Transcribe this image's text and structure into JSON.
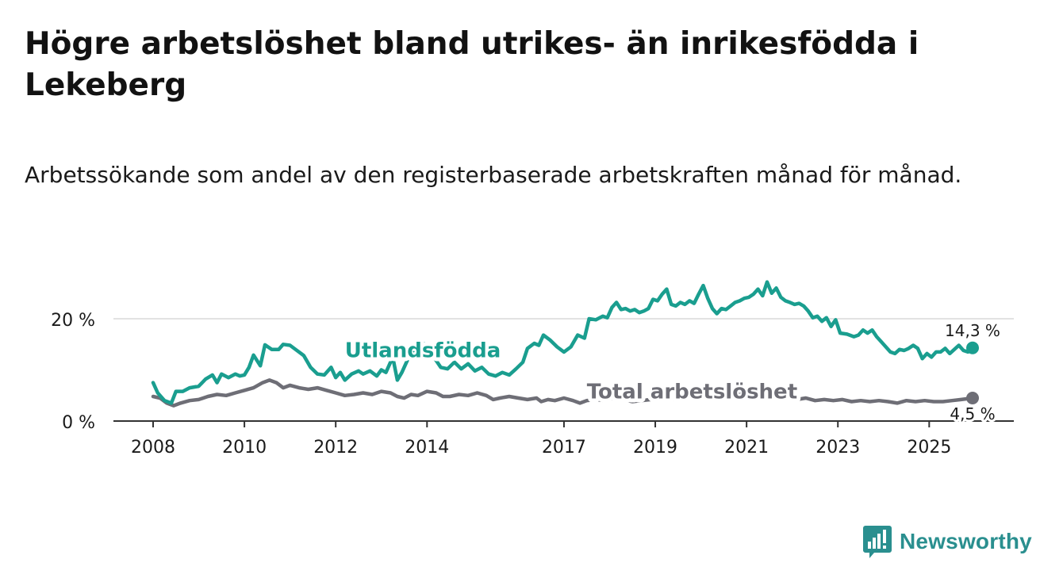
{
  "title": "Högre arbetslöshet bland utrikes- än inrikesfödda i Lekeberg",
  "subtitle": "Arbetssökande som andel av den registerbaserade arbetskraften månad för månad.",
  "brand": {
    "name": "Newsworthy",
    "icon": "newsworthy-logo-icon"
  },
  "colors": {
    "foreign": "#1a9e8f",
    "total": "#6e6e76",
    "grid": "#d9d9d9",
    "axis": "#333333",
    "text": "#1a1a1a"
  },
  "chart_data": {
    "type": "line",
    "title": "Högre arbetslöshet bland utrikes- än inrikesfödda i Lekeberg",
    "xlabel": "",
    "ylabel": "",
    "xlim": [
      2008,
      2026.5
    ],
    "ylim": [
      0,
      25
    ],
    "x_ticks": [
      {
        "value": 2008,
        "label": "2008"
      },
      {
        "value": 2010,
        "label": "2010"
      },
      {
        "value": 2012,
        "label": "2012"
      },
      {
        "value": 2014,
        "label": "2014"
      },
      {
        "value": 2017,
        "label": "2017"
      },
      {
        "value": 2019,
        "label": "2019"
      },
      {
        "value": 2021,
        "label": "2021"
      },
      {
        "value": 2023,
        "label": "2023"
      },
      {
        "value": 2025,
        "label": "2025"
      }
    ],
    "y_ticks": [
      {
        "value": 0,
        "label": "0 %"
      },
      {
        "value": 20,
        "label": "20 %"
      }
    ],
    "series": [
      {
        "name": "Utlandsfödda",
        "label": "Utlandsfödda",
        "color": "#1a9e8f",
        "end_label": "14,3 %",
        "label_pos": [
          2012.2,
          12.5
        ],
        "points": [
          [
            2008.0,
            7.5
          ],
          [
            2008.1,
            5.5
          ],
          [
            2008.25,
            4.0
          ],
          [
            2008.4,
            3.5
          ],
          [
            2008.5,
            5.8
          ],
          [
            2008.65,
            5.8
          ],
          [
            2008.8,
            6.5
          ],
          [
            2009.0,
            6.8
          ],
          [
            2009.15,
            8.2
          ],
          [
            2009.3,
            9.0
          ],
          [
            2009.4,
            7.5
          ],
          [
            2009.5,
            9.2
          ],
          [
            2009.65,
            8.5
          ],
          [
            2009.8,
            9.2
          ],
          [
            2009.9,
            8.8
          ],
          [
            2010.0,
            9.0
          ],
          [
            2010.1,
            10.5
          ],
          [
            2010.2,
            12.9
          ],
          [
            2010.35,
            10.8
          ],
          [
            2010.45,
            14.9
          ],
          [
            2010.6,
            14.0
          ],
          [
            2010.75,
            14.0
          ],
          [
            2010.85,
            15.0
          ],
          [
            2011.0,
            14.8
          ],
          [
            2011.15,
            13.8
          ],
          [
            2011.3,
            12.8
          ],
          [
            2011.45,
            10.5
          ],
          [
            2011.6,
            9.2
          ],
          [
            2011.75,
            9.0
          ],
          [
            2011.9,
            10.5
          ],
          [
            2012.0,
            8.5
          ],
          [
            2012.1,
            9.5
          ],
          [
            2012.2,
            8.0
          ],
          [
            2012.35,
            9.2
          ],
          [
            2012.5,
            9.8
          ],
          [
            2012.6,
            9.2
          ],
          [
            2012.75,
            9.8
          ],
          [
            2012.9,
            8.8
          ],
          [
            2013.0,
            10.0
          ],
          [
            2013.1,
            9.5
          ],
          [
            2013.25,
            12.5
          ],
          [
            2013.35,
            8.0
          ],
          [
            2013.45,
            9.5
          ],
          [
            2013.6,
            12.5
          ],
          [
            2013.75,
            14.5
          ],
          [
            2013.85,
            15.5
          ],
          [
            2014.0,
            14.8
          ],
          [
            2014.15,
            12.5
          ],
          [
            2014.3,
            10.5
          ],
          [
            2014.45,
            10.2
          ],
          [
            2014.6,
            11.5
          ],
          [
            2014.75,
            10.2
          ],
          [
            2014.9,
            11.2
          ],
          [
            2015.05,
            9.8
          ],
          [
            2015.2,
            10.5
          ],
          [
            2015.35,
            9.2
          ],
          [
            2015.5,
            8.8
          ],
          [
            2015.65,
            9.5
          ],
          [
            2015.8,
            9.0
          ],
          [
            2015.95,
            10.2
          ],
          [
            2016.1,
            11.5
          ],
          [
            2016.2,
            14.2
          ],
          [
            2016.35,
            15.2
          ],
          [
            2016.45,
            14.8
          ],
          [
            2016.55,
            16.8
          ],
          [
            2016.7,
            15.8
          ],
          [
            2016.85,
            14.5
          ],
          [
            2017.0,
            13.5
          ],
          [
            2017.15,
            14.5
          ],
          [
            2017.3,
            16.8
          ],
          [
            2017.45,
            16.2
          ],
          [
            2017.55,
            20.0
          ],
          [
            2017.7,
            19.8
          ],
          [
            2017.85,
            20.5
          ],
          [
            2017.95,
            20.2
          ],
          [
            2018.05,
            22.2
          ],
          [
            2018.15,
            23.2
          ],
          [
            2018.25,
            21.8
          ],
          [
            2018.35,
            22.0
          ],
          [
            2018.45,
            21.5
          ],
          [
            2018.55,
            21.8
          ],
          [
            2018.65,
            21.2
          ],
          [
            2018.75,
            21.5
          ],
          [
            2018.85,
            22.0
          ],
          [
            2018.95,
            23.8
          ],
          [
            2019.05,
            23.5
          ],
          [
            2019.15,
            24.8
          ],
          [
            2019.25,
            25.8
          ],
          [
            2019.35,
            22.8
          ],
          [
            2019.45,
            22.5
          ],
          [
            2019.55,
            23.2
          ],
          [
            2019.65,
            22.8
          ],
          [
            2019.75,
            23.5
          ],
          [
            2019.85,
            23.0
          ],
          [
            2019.95,
            24.8
          ],
          [
            2020.05,
            26.5
          ],
          [
            2020.15,
            24.0
          ],
          [
            2020.25,
            22.0
          ],
          [
            2020.35,
            21.0
          ],
          [
            2020.45,
            22.0
          ],
          [
            2020.55,
            21.8
          ],
          [
            2020.65,
            22.5
          ],
          [
            2020.75,
            23.2
          ],
          [
            2020.85,
            23.5
          ],
          [
            2020.95,
            24.0
          ],
          [
            2021.05,
            24.2
          ],
          [
            2021.15,
            24.8
          ],
          [
            2021.25,
            25.8
          ],
          [
            2021.35,
            24.5
          ],
          [
            2021.45,
            27.2
          ],
          [
            2021.55,
            25.0
          ],
          [
            2021.65,
            26.0
          ],
          [
            2021.75,
            24.2
          ],
          [
            2021.85,
            23.5
          ],
          [
            2021.95,
            23.2
          ],
          [
            2022.05,
            22.8
          ],
          [
            2022.15,
            23.0
          ],
          [
            2022.25,
            22.5
          ],
          [
            2022.35,
            21.5
          ],
          [
            2022.45,
            20.2
          ],
          [
            2022.55,
            20.5
          ],
          [
            2022.65,
            19.5
          ],
          [
            2022.75,
            20.2
          ],
          [
            2022.85,
            18.5
          ],
          [
            2022.95,
            19.8
          ],
          [
            2023.05,
            17.2
          ],
          [
            2023.2,
            17.0
          ],
          [
            2023.35,
            16.5
          ],
          [
            2023.45,
            16.8
          ],
          [
            2023.55,
            17.8
          ],
          [
            2023.65,
            17.2
          ],
          [
            2023.75,
            17.8
          ],
          [
            2023.85,
            16.5
          ],
          [
            2023.95,
            15.5
          ],
          [
            2024.05,
            14.5
          ],
          [
            2024.15,
            13.5
          ],
          [
            2024.25,
            13.2
          ],
          [
            2024.35,
            14.0
          ],
          [
            2024.45,
            13.8
          ],
          [
            2024.55,
            14.2
          ],
          [
            2024.65,
            14.8
          ],
          [
            2024.75,
            14.2
          ],
          [
            2024.85,
            12.2
          ],
          [
            2024.95,
            13.2
          ],
          [
            2025.05,
            12.5
          ],
          [
            2025.15,
            13.5
          ],
          [
            2025.25,
            13.5
          ],
          [
            2025.35,
            14.2
          ],
          [
            2025.45,
            13.2
          ],
          [
            2025.55,
            14.0
          ],
          [
            2025.65,
            14.8
          ],
          [
            2025.75,
            13.8
          ],
          [
            2025.85,
            13.5
          ],
          [
            2025.95,
            14.3
          ]
        ]
      },
      {
        "name": "Total arbetslöshet",
        "label": "Total arbetslöshet",
        "color": "#6e6e76",
        "end_label": "4,5 %",
        "label_pos": [
          2017.5,
          4.4
        ],
        "points": [
          [
            2008.0,
            4.8
          ],
          [
            2008.15,
            4.5
          ],
          [
            2008.3,
            3.5
          ],
          [
            2008.45,
            3.0
          ],
          [
            2008.6,
            3.5
          ],
          [
            2008.8,
            4.0
          ],
          [
            2009.0,
            4.2
          ],
          [
            2009.2,
            4.8
          ],
          [
            2009.4,
            5.2
          ],
          [
            2009.6,
            5.0
          ],
          [
            2009.8,
            5.5
          ],
          [
            2010.0,
            6.0
          ],
          [
            2010.2,
            6.5
          ],
          [
            2010.4,
            7.5
          ],
          [
            2010.55,
            8.0
          ],
          [
            2010.7,
            7.5
          ],
          [
            2010.85,
            6.5
          ],
          [
            2011.0,
            7.0
          ],
          [
            2011.2,
            6.5
          ],
          [
            2011.4,
            6.2
          ],
          [
            2011.6,
            6.5
          ],
          [
            2011.8,
            6.0
          ],
          [
            2012.0,
            5.5
          ],
          [
            2012.2,
            5.0
          ],
          [
            2012.4,
            5.2
          ],
          [
            2012.6,
            5.5
          ],
          [
            2012.8,
            5.2
          ],
          [
            2013.0,
            5.8
          ],
          [
            2013.2,
            5.5
          ],
          [
            2013.35,
            4.8
          ],
          [
            2013.5,
            4.5
          ],
          [
            2013.65,
            5.2
          ],
          [
            2013.8,
            5.0
          ],
          [
            2014.0,
            5.8
          ],
          [
            2014.2,
            5.5
          ],
          [
            2014.35,
            4.8
          ],
          [
            2014.5,
            4.8
          ],
          [
            2014.7,
            5.2
          ],
          [
            2014.9,
            5.0
          ],
          [
            2015.1,
            5.5
          ],
          [
            2015.3,
            5.0
          ],
          [
            2015.45,
            4.2
          ],
          [
            2015.6,
            4.5
          ],
          [
            2015.8,
            4.8
          ],
          [
            2016.0,
            4.5
          ],
          [
            2016.2,
            4.2
          ],
          [
            2016.4,
            4.5
          ],
          [
            2016.5,
            3.8
          ],
          [
            2016.65,
            4.2
          ],
          [
            2016.8,
            4.0
          ],
          [
            2017.0,
            4.5
          ],
          [
            2017.2,
            4.0
          ],
          [
            2017.35,
            3.5
          ],
          [
            2017.5,
            4.0
          ],
          [
            2017.7,
            4.2
          ],
          [
            2017.9,
            4.0
          ],
          [
            2018.1,
            4.5
          ],
          [
            2018.3,
            4.2
          ],
          [
            2018.5,
            3.8
          ],
          [
            2018.7,
            4.0
          ],
          [
            2018.9,
            4.2
          ],
          [
            2019.1,
            4.8
          ],
          [
            2019.3,
            4.5
          ],
          [
            2019.5,
            4.2
          ],
          [
            2019.7,
            4.5
          ],
          [
            2019.9,
            4.8
          ],
          [
            2020.1,
            5.0
          ],
          [
            2020.3,
            5.2
          ],
          [
            2020.5,
            4.8
          ],
          [
            2020.7,
            5.0
          ],
          [
            2020.9,
            5.2
          ],
          [
            2021.1,
            5.0
          ],
          [
            2021.3,
            4.8
          ],
          [
            2021.5,
            4.5
          ],
          [
            2021.7,
            4.8
          ],
          [
            2021.9,
            4.5
          ],
          [
            2022.1,
            4.2
          ],
          [
            2022.3,
            4.5
          ],
          [
            2022.5,
            4.0
          ],
          [
            2022.7,
            4.2
          ],
          [
            2022.9,
            4.0
          ],
          [
            2023.1,
            4.2
          ],
          [
            2023.3,
            3.8
          ],
          [
            2023.5,
            4.0
          ],
          [
            2023.7,
            3.8
          ],
          [
            2023.9,
            4.0
          ],
          [
            2024.1,
            3.8
          ],
          [
            2024.3,
            3.5
          ],
          [
            2024.5,
            4.0
          ],
          [
            2024.7,
            3.8
          ],
          [
            2024.9,
            4.0
          ],
          [
            2025.1,
            3.8
          ],
          [
            2025.3,
            3.8
          ],
          [
            2025.5,
            4.0
          ],
          [
            2025.7,
            4.2
          ],
          [
            2025.95,
            4.5
          ]
        ]
      }
    ]
  }
}
